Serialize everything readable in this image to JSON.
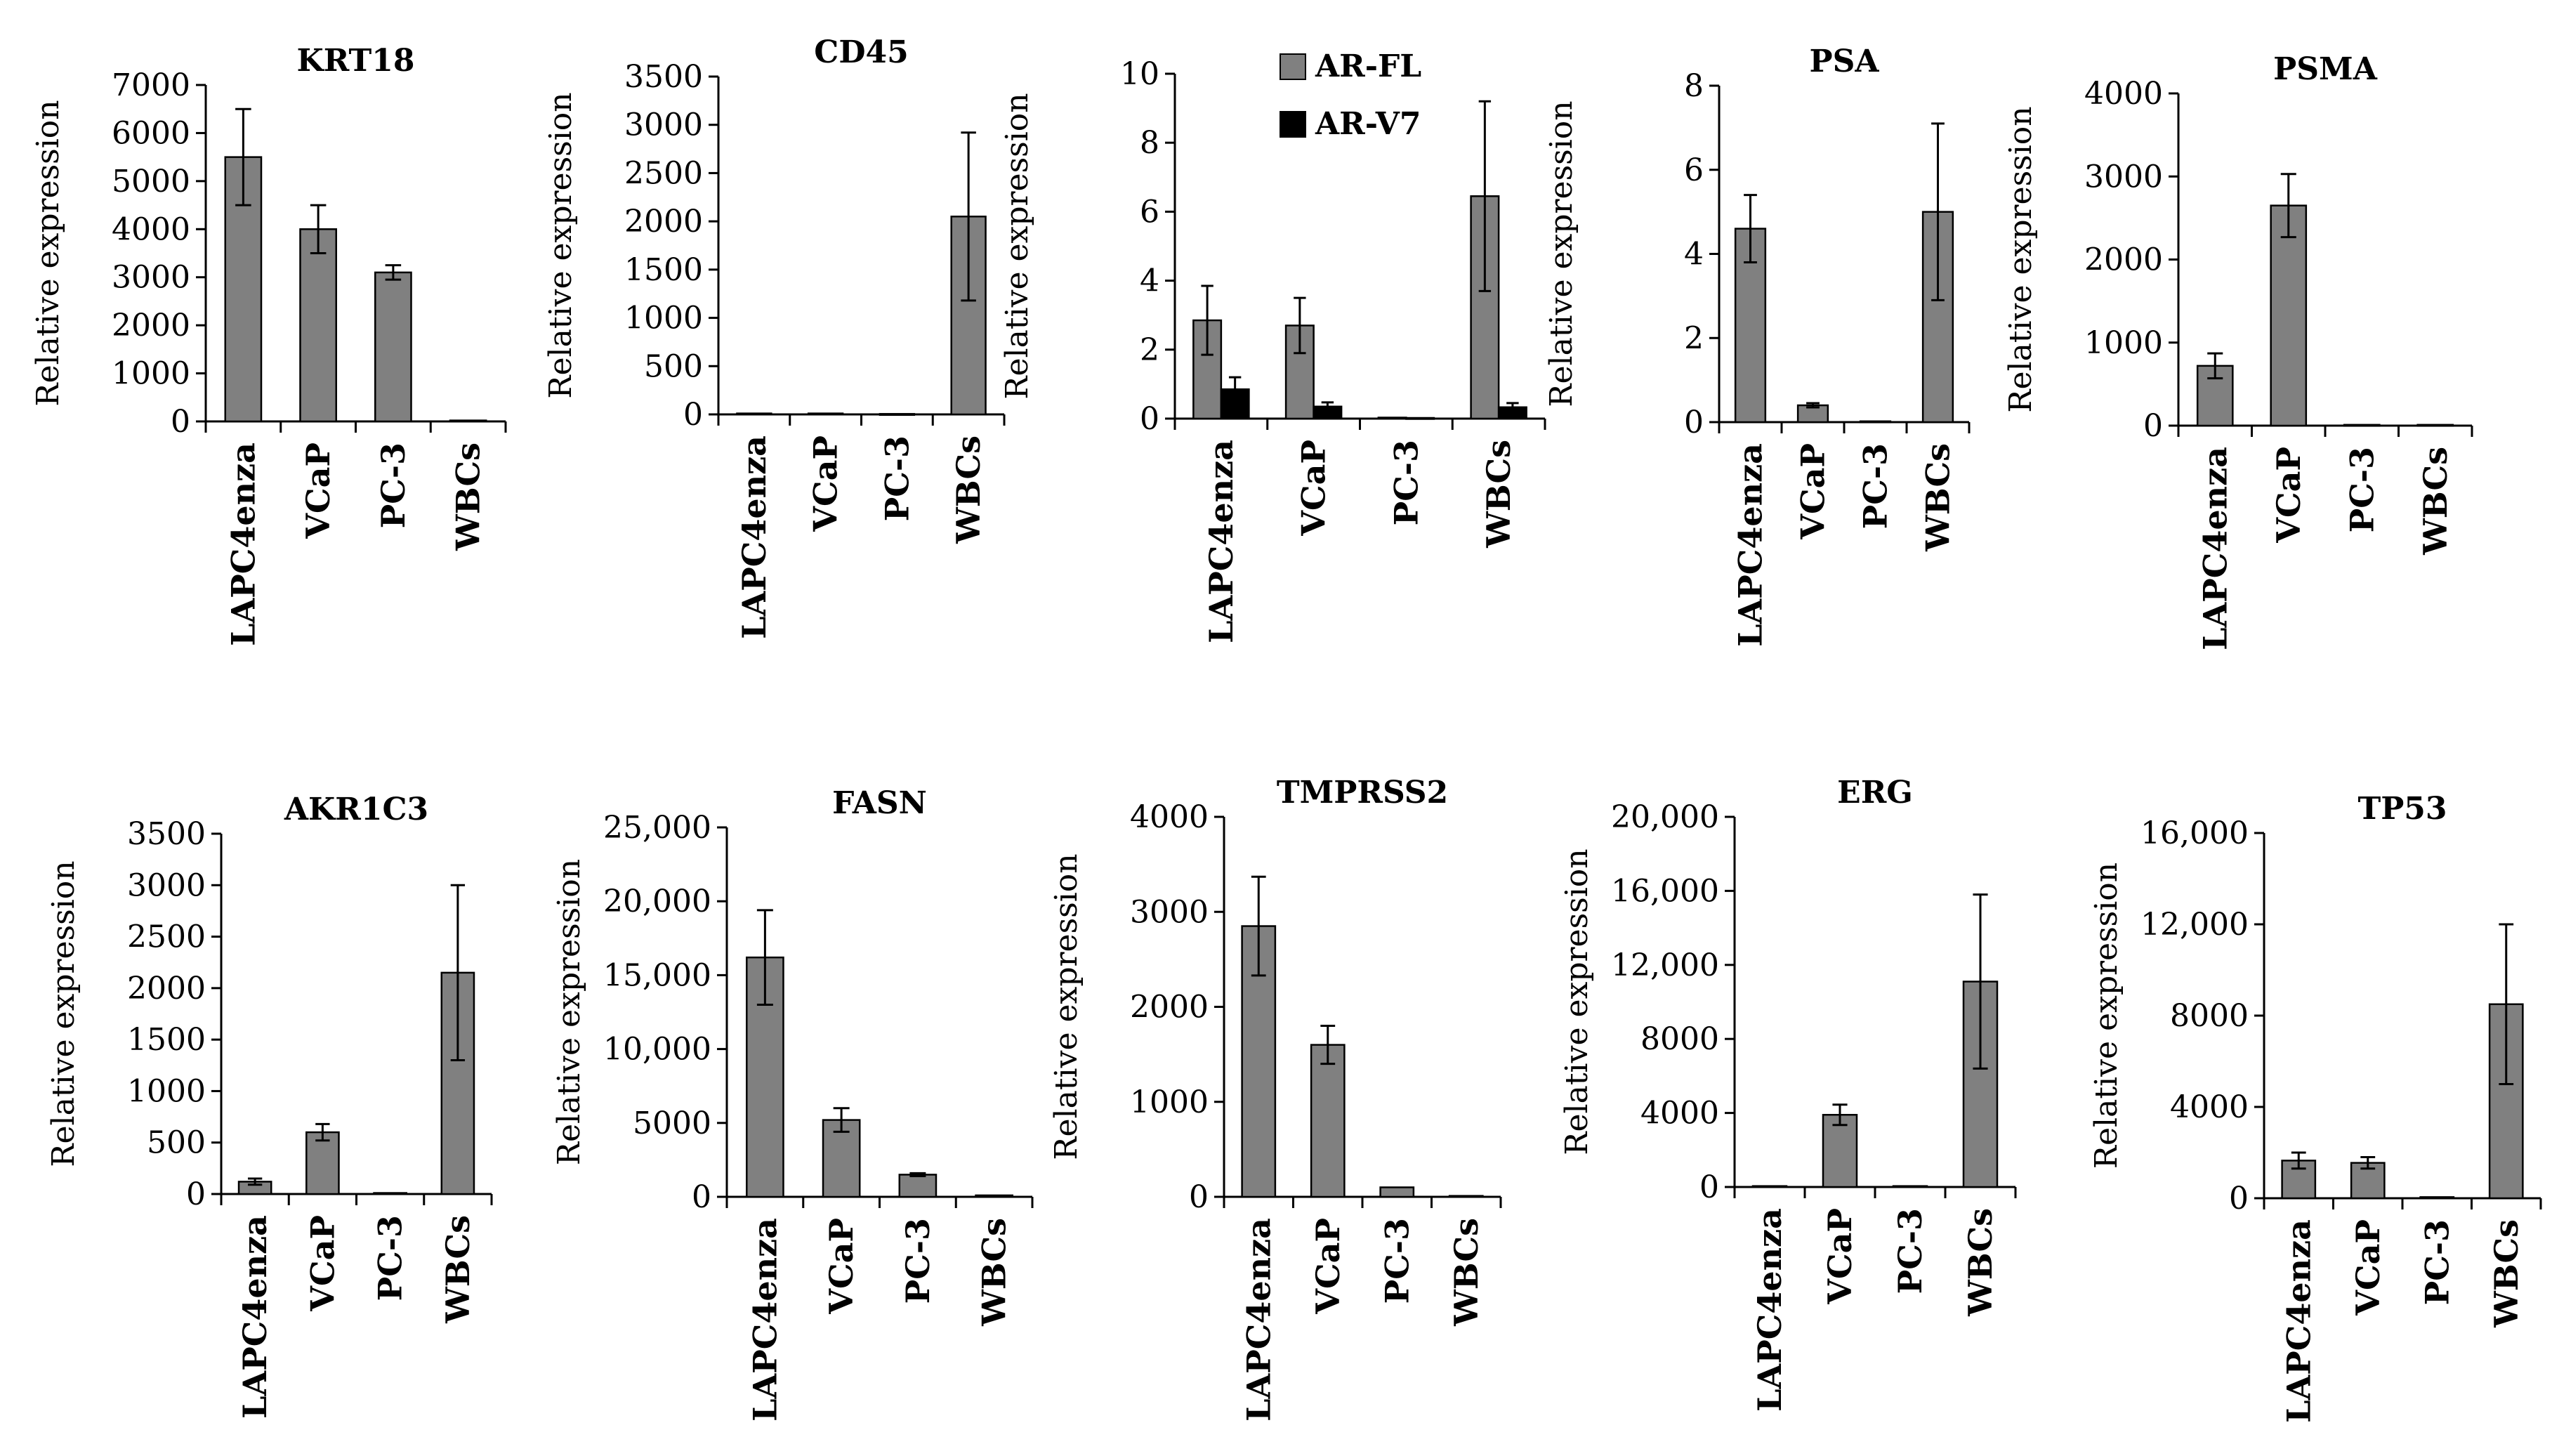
{
  "figure": {
    "bar_fill": "#808080",
    "bar_fill_secondary": "#000000",
    "axis_color": "#000000"
  },
  "chart_data": [
    {
      "type": "bar",
      "title": "KRT18",
      "ylabel": "Relative expression",
      "xlabel": "",
      "categories": [
        "LAPC4enza",
        "VCaP",
        "PC-3",
        "WBCs"
      ],
      "ylim": [
        0,
        7000
      ],
      "yticks": [
        0,
        1000,
        2000,
        3000,
        4000,
        5000,
        6000,
        7000
      ],
      "ytick_labels": [
        "0",
        "1000",
        "2000",
        "3000",
        "4000",
        "5000",
        "6000",
        "7000"
      ],
      "series": [
        {
          "name": "",
          "color": "#808080",
          "values": [
            5500,
            4000,
            3100,
            20
          ],
          "errors": [
            1000,
            500,
            150,
            0
          ]
        }
      ]
    },
    {
      "type": "bar",
      "title": "CD45",
      "ylabel": "Relative expression",
      "xlabel": "",
      "categories": [
        "LAPC4enza",
        "VCaP",
        "PC-3",
        "WBCs"
      ],
      "ylim": [
        0,
        3500
      ],
      "yticks": [
        0,
        500,
        1000,
        1500,
        2000,
        2500,
        3000,
        3500
      ],
      "ytick_labels": [
        "0",
        "500",
        "1000",
        "1500",
        "2000",
        "2500",
        "3000",
        "3500"
      ],
      "series": [
        {
          "name": "",
          "color": "#808080",
          "values": [
            10,
            10,
            5,
            2050
          ],
          "errors": [
            0,
            0,
            0,
            870
          ]
        }
      ]
    },
    {
      "type": "bar",
      "title": "",
      "ylabel": "Relative expression",
      "xlabel": "",
      "categories": [
        "LAPC4enza",
        "VCaP",
        "PC-3",
        "WBCs"
      ],
      "ylim": [
        0,
        10
      ],
      "yticks": [
        0,
        2,
        4,
        6,
        8,
        10
      ],
      "ytick_labels": [
        "0",
        "2",
        "4",
        "6",
        "8",
        "10"
      ],
      "legend": [
        "AR-FL",
        "AR-V7"
      ],
      "legend_position": "top",
      "series": [
        {
          "name": "AR-FL",
          "color": "#808080",
          "values": [
            2.85,
            2.7,
            0.03,
            6.45
          ],
          "errors": [
            1.0,
            0.8,
            0,
            2.75
          ]
        },
        {
          "name": "AR-V7",
          "color": "#000000",
          "values": [
            0.85,
            0.35,
            0.02,
            0.33
          ],
          "errors": [
            0.35,
            0.12,
            0,
            0.12
          ]
        }
      ]
    },
    {
      "type": "bar",
      "title": "PSA",
      "ylabel": "Relative expression",
      "xlabel": "",
      "categories": [
        "LAPC4enza",
        "VCaP",
        "PC-3",
        "WBCs"
      ],
      "ylim": [
        0,
        8
      ],
      "yticks": [
        0,
        2,
        4,
        6,
        8
      ],
      "ytick_labels": [
        "0",
        "2",
        "4",
        "6",
        "8"
      ],
      "series": [
        {
          "name": "",
          "color": "#808080",
          "values": [
            4.6,
            0.4,
            0.02,
            5.0
          ],
          "errors": [
            0.8,
            0.05,
            0,
            2.1
          ]
        }
      ]
    },
    {
      "type": "bar",
      "title": "PSMA",
      "ylabel": "Relative expression",
      "xlabel": "",
      "categories": [
        "LAPC4enza",
        "VCaP",
        "PC-3",
        "WBCs"
      ],
      "ylim": [
        0,
        4000
      ],
      "yticks": [
        0,
        1000,
        2000,
        3000,
        4000
      ],
      "ytick_labels": [
        "0",
        "1000",
        "2000",
        "3000",
        "4000"
      ],
      "series": [
        {
          "name": "",
          "color": "#808080",
          "values": [
            720,
            2650,
            10,
            10
          ],
          "errors": [
            150,
            380,
            0,
            0
          ]
        }
      ]
    },
    {
      "type": "bar",
      "title": "AKR1C3",
      "ylabel": "Relative expression",
      "xlabel": "",
      "categories": [
        "LAPC4enza",
        "VCaP",
        "PC-3",
        "WBCs"
      ],
      "ylim": [
        0,
        3500
      ],
      "yticks": [
        0,
        500,
        1000,
        1500,
        2000,
        2500,
        3000,
        3500
      ],
      "ytick_labels": [
        "0",
        "500",
        "1000",
        "1500",
        "2000",
        "2500",
        "3000",
        "3500"
      ],
      "series": [
        {
          "name": "",
          "color": "#808080",
          "values": [
            120,
            600,
            10,
            2150
          ],
          "errors": [
            30,
            80,
            0,
            850
          ]
        }
      ]
    },
    {
      "type": "bar",
      "title": "FASN",
      "ylabel": "Relative expression",
      "xlabel": "",
      "categories": [
        "LAPC4enza",
        "VCaP",
        "PC-3",
        "WBCs"
      ],
      "ylim": [
        0,
        25000
      ],
      "yticks": [
        0,
        5000,
        10000,
        15000,
        20000,
        25000
      ],
      "ytick_labels": [
        "0",
        "5000",
        "10,000",
        "15,000",
        "20,000",
        "25,000"
      ],
      "series": [
        {
          "name": "",
          "color": "#808080",
          "values": [
            16200,
            5200,
            1500,
            100
          ],
          "errors": [
            3200,
            800,
            100,
            0
          ]
        }
      ]
    },
    {
      "type": "bar",
      "title": "TMPRSS2",
      "ylabel": "Relative expression",
      "xlabel": "",
      "categories": [
        "LAPC4enza",
        "VCaP",
        "PC-3",
        "WBCs"
      ],
      "ylim": [
        0,
        4000
      ],
      "yticks": [
        0,
        1000,
        2000,
        3000,
        4000
      ],
      "ytick_labels": [
        "0",
        "1000",
        "2000",
        "3000",
        "4000"
      ],
      "series": [
        {
          "name": "",
          "color": "#808080",
          "values": [
            2850,
            1600,
            100,
            10
          ],
          "errors": [
            520,
            200,
            0,
            0
          ]
        }
      ]
    },
    {
      "type": "bar",
      "title": "ERG",
      "ylabel": "Relative expression",
      "xlabel": "",
      "categories": [
        "LAPC4enza",
        "VCaP",
        "PC-3",
        "WBCs"
      ],
      "ylim": [
        0,
        20000
      ],
      "yticks": [
        0,
        4000,
        8000,
        12000,
        16000,
        20000
      ],
      "ytick_labels": [
        "0",
        "4000",
        "8000",
        "12,000",
        "16,000",
        "20,000"
      ],
      "series": [
        {
          "name": "",
          "color": "#808080",
          "values": [
            50,
            3900,
            50,
            11100
          ],
          "errors": [
            0,
            550,
            0,
            4700
          ]
        }
      ]
    },
    {
      "type": "bar",
      "title": "TP53",
      "ylabel": "Relative expression",
      "xlabel": "",
      "categories": [
        "LAPC4enza",
        "VCaP",
        "PC-3",
        "WBCs"
      ],
      "ylim": [
        0,
        16000
      ],
      "yticks": [
        0,
        4000,
        8000,
        12000,
        16000
      ],
      "ytick_labels": [
        "0",
        "4000",
        "8000",
        "12,000",
        "16,000"
      ],
      "series": [
        {
          "name": "",
          "color": "#808080",
          "values": [
            1650,
            1550,
            50,
            8500
          ],
          "errors": [
            350,
            250,
            0,
            3500
          ]
        }
      ]
    }
  ]
}
